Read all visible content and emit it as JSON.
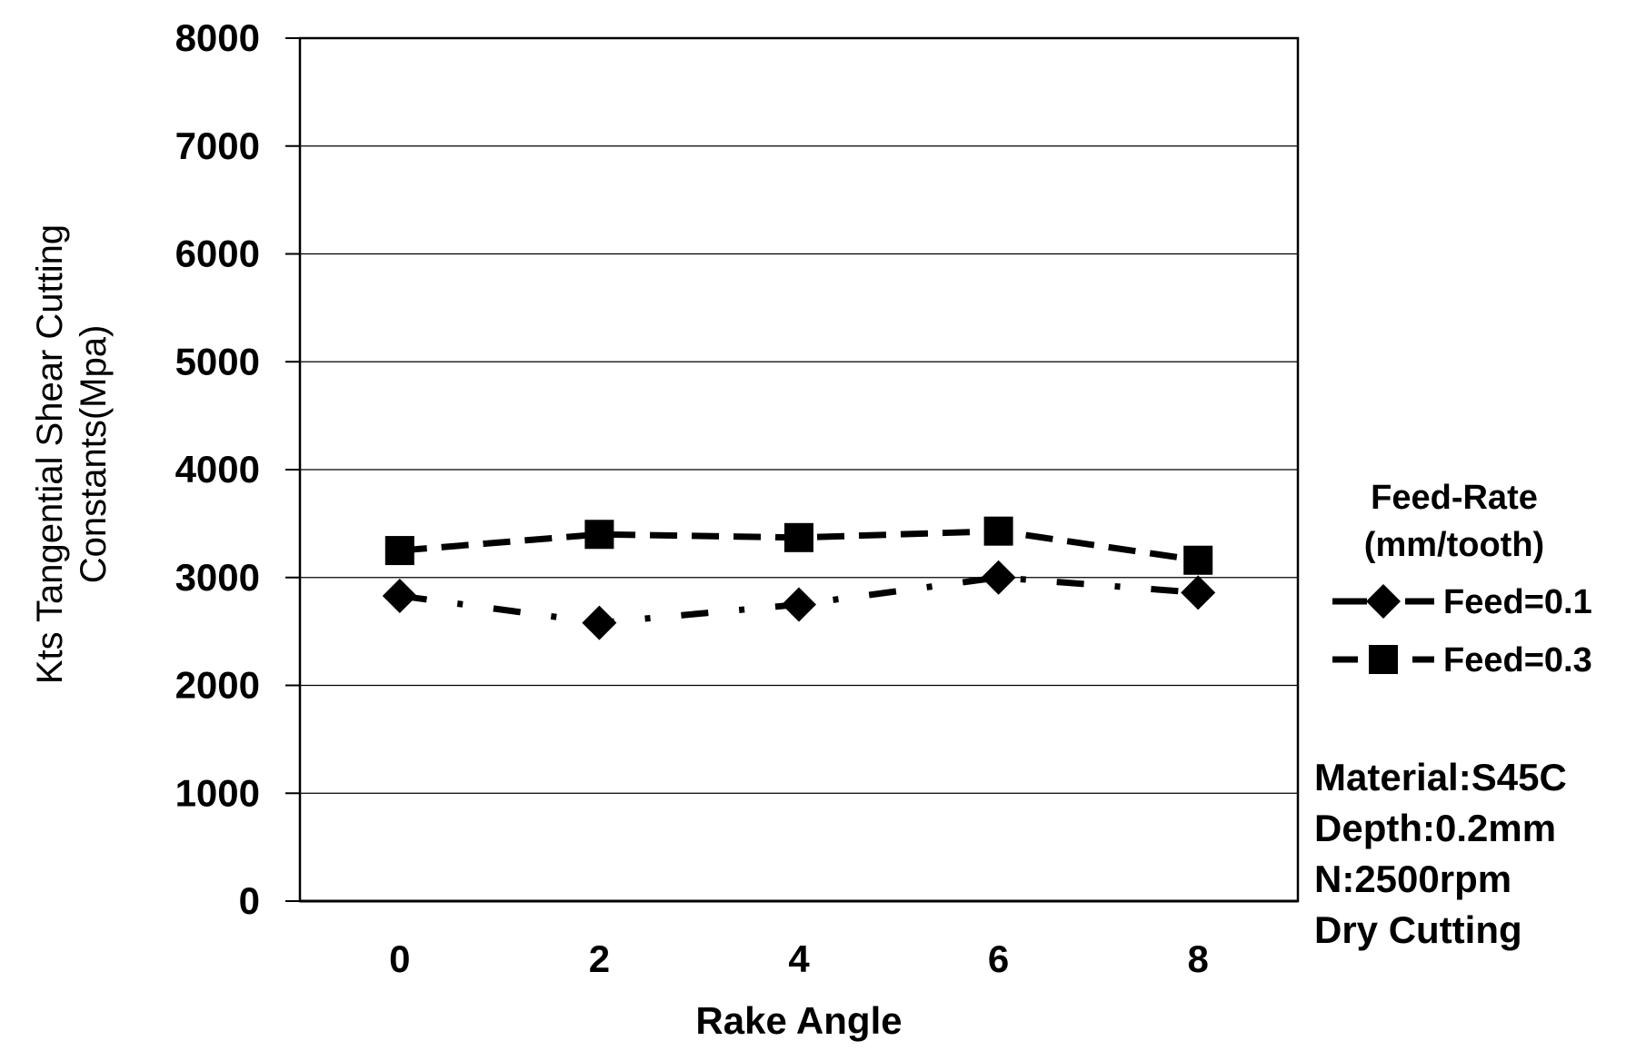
{
  "chart_data": {
    "type": "line",
    "xlabel": "Rake Angle",
    "ylabel_line1": "Kts Tangential  Shear Cutting",
    "ylabel_line2": "Constants(Mpa)",
    "categories": [
      "0",
      "2",
      "4",
      "6",
      "8"
    ],
    "ylim": [
      0,
      8000
    ],
    "yticks": [
      "0",
      "1000",
      "2000",
      "3000",
      "4000",
      "5000",
      "6000",
      "7000",
      "8000"
    ],
    "grid": true,
    "legend_title_line1": "Feed-Rate",
    "legend_title_line2": "(mm/tooth)",
    "legend_position": "right",
    "series": [
      {
        "name": "Feed=0.1",
        "marker": "diamond",
        "dash": "dash-dot",
        "color": "#000000",
        "values": [
          2830,
          2580,
          2750,
          3000,
          2860
        ]
      },
      {
        "name": "Feed=0.3",
        "marker": "square",
        "dash": "dashed",
        "color": "#000000",
        "values": [
          3250,
          3400,
          3370,
          3430,
          3160
        ]
      }
    ],
    "notes": [
      "Material:S45C",
      "Depth:0.2mm",
      "N:2500rpm",
      "Dry Cutting"
    ]
  }
}
